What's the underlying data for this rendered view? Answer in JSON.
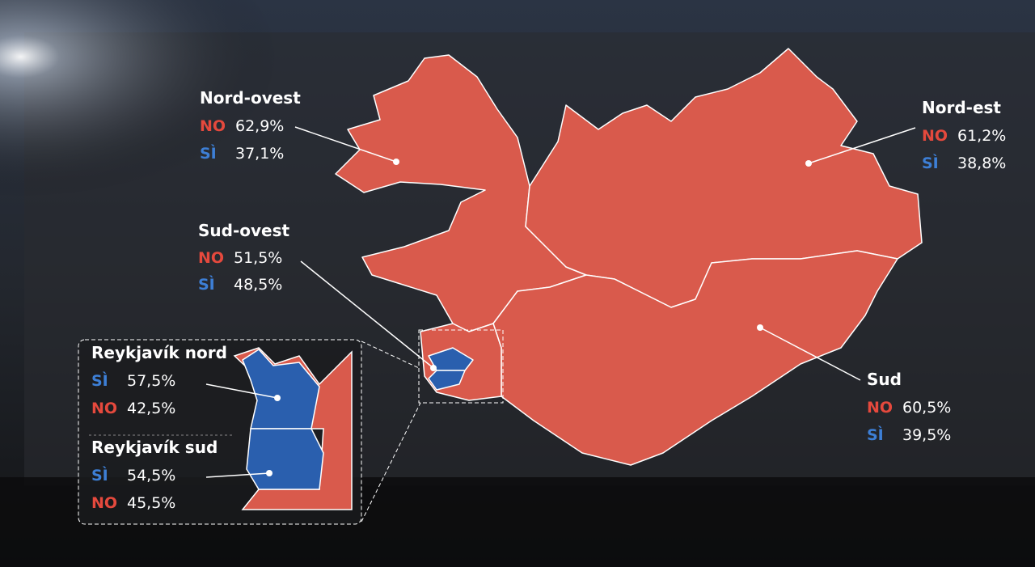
{
  "regions": [
    {
      "name": "Nord-ovest",
      "color": "#d95a4c",
      "results": [
        {
          "label": "NO",
          "value": 62.9,
          "value_label": "62,9%",
          "color": "#e5493d"
        },
        {
          "label": "SÌ",
          "value": 37.1,
          "value_label": "37,1%",
          "color": "#3d7fd6"
        }
      ]
    },
    {
      "name": "Nord-est",
      "color": "#d95a4c",
      "results": [
        {
          "label": "NO",
          "value": 61.2,
          "value_label": "61,2%",
          "color": "#e5493d"
        },
        {
          "label": "SÌ",
          "value": 38.8,
          "value_label": "38,8%",
          "color": "#3d7fd6"
        }
      ]
    },
    {
      "name": "Sud-ovest",
      "color": "#d95a4c",
      "results": [
        {
          "label": "NO",
          "value": 51.5,
          "value_label": "51,5%",
          "color": "#e5493d"
        },
        {
          "label": "SÌ",
          "value": 48.5,
          "value_label": "48,5%",
          "color": "#3d7fd6"
        }
      ]
    },
    {
      "name": "Sud",
      "color": "#d95a4c",
      "results": [
        {
          "label": "NO",
          "value": 60.5,
          "value_label": "60,5%",
          "color": "#e5493d"
        },
        {
          "label": "SÌ",
          "value": 39.5,
          "value_label": "39,5%",
          "color": "#3d7fd6"
        }
      ]
    },
    {
      "name": "Reykjavík nord",
      "color": "#2a5fae",
      "results": [
        {
          "label": "SÌ",
          "value": 57.5,
          "value_label": "57,5%",
          "color": "#3d7fd6"
        },
        {
          "label": "NO",
          "value": 42.5,
          "value_label": "42,5%",
          "color": "#e5493d"
        }
      ]
    },
    {
      "name": "Reykjavík sud",
      "color": "#2a5fae",
      "results": [
        {
          "label": "SÌ",
          "value": 54.5,
          "value_label": "54,5%",
          "color": "#3d7fd6"
        },
        {
          "label": "NO",
          "value": 45.5,
          "value_label": "45,5%",
          "color": "#e5493d"
        }
      ]
    }
  ]
}
